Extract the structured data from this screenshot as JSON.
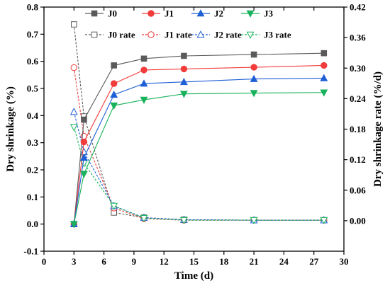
{
  "chart_data": {
    "type": "line",
    "xlabel": "Time (d)",
    "ylabel": "Dry shrinkage (%)",
    "y2label": "Dry shrinkage rate (%/d)",
    "xlim": [
      0,
      30
    ],
    "ylim": [
      -0.1,
      0.8
    ],
    "y2lim": [
      -0.06,
      0.42
    ],
    "xticks": [
      "0",
      "3",
      "6",
      "9",
      "12",
      "15",
      "18",
      "21",
      "24",
      "27",
      "30"
    ],
    "yticks": [
      "-0.1",
      "0.0",
      "0.1",
      "0.2",
      "0.3",
      "0.4",
      "0.5",
      "0.6",
      "0.7",
      "0.8"
    ],
    "y2ticks": [
      "0.00",
      "0.06",
      "0.12",
      "0.18",
      "0.24",
      "0.30",
      "0.36",
      "0.42"
    ],
    "grid": false,
    "legend": "top",
    "x": [
      3,
      4,
      7,
      10,
      14,
      21,
      28
    ],
    "series": [
      {
        "name": "J0",
        "axis": "left",
        "style": "solid",
        "marker": "square",
        "color": "#5a5a5a",
        "values": [
          0.0,
          0.385,
          0.585,
          0.61,
          0.62,
          0.625,
          0.63
        ]
      },
      {
        "name": "J1",
        "axis": "left",
        "style": "solid",
        "marker": "circle",
        "color": "#f23b3b",
        "values": [
          0.0,
          0.303,
          0.518,
          0.568,
          0.572,
          0.578,
          0.585
        ]
      },
      {
        "name": "J2",
        "axis": "left",
        "style": "solid",
        "marker": "triangle-up",
        "color": "#1f5fd6",
        "values": [
          0.0,
          0.245,
          0.477,
          0.518,
          0.524,
          0.535,
          0.538
        ]
      },
      {
        "name": "J3",
        "axis": "left",
        "style": "solid",
        "marker": "triangle-down",
        "color": "#19b25c",
        "values": [
          0.0,
          0.185,
          0.437,
          0.458,
          0.48,
          0.483,
          0.485
        ]
      },
      {
        "name": "J0 rate",
        "axis": "right",
        "style": "dashed",
        "marker": "square-open",
        "color": "#5a5a5a",
        "values": [
          0.386,
          0.205,
          0.016,
          0.006,
          0.002,
          0.001,
          0.001
        ]
      },
      {
        "name": "J1 rate",
        "axis": "right",
        "style": "dashed",
        "marker": "circle-open",
        "color": "#f23b3b",
        "values": [
          0.301,
          0.166,
          0.025,
          0.004,
          0.001,
          0.001,
          0.001
        ]
      },
      {
        "name": "J2 rate",
        "axis": "right",
        "style": "dashed",
        "marker": "triangle-up-open",
        "color": "#1f5fd6",
        "values": [
          0.214,
          0.135,
          0.029,
          0.006,
          0.002,
          0.001,
          0.001
        ]
      },
      {
        "name": "J3 rate",
        "axis": "right",
        "style": "dashed",
        "marker": "triangle-down-open",
        "color": "#19b25c",
        "values": [
          0.184,
          0.113,
          0.029,
          0.005,
          0.001,
          0.001,
          0.001
        ]
      }
    ]
  }
}
